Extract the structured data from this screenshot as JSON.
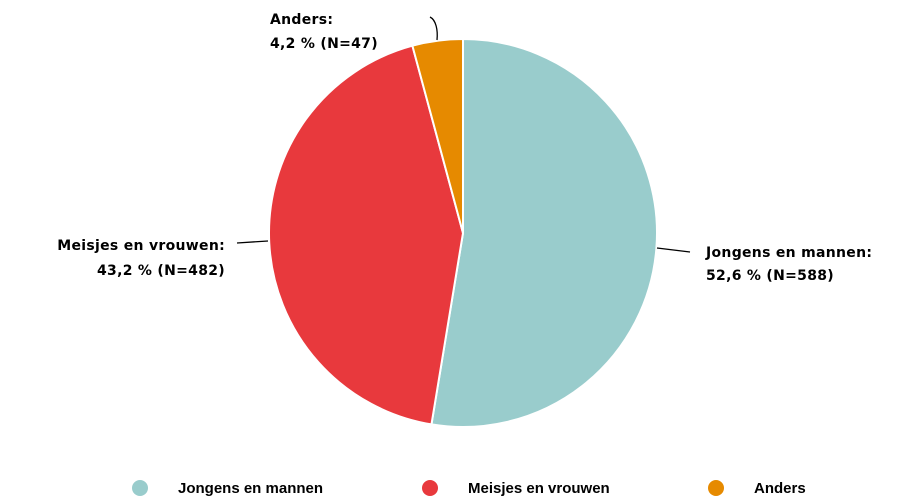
{
  "chart_data": {
    "type": "pie",
    "categories": [
      "Jongens en mannen",
      "Meisjes en vrouwen",
      "Anders"
    ],
    "values": [
      52.6,
      43.2,
      4.2
    ],
    "label_titles": [
      "Jongens en mannen:",
      "Meisjes en vrouwen:",
      "Anders:"
    ],
    "value_labels": [
      "52,6 % (N=588)",
      "43,2 % (N=482)",
      "4,2 % (N=47)"
    ],
    "colors": [
      "#99cccc",
      "#e8393d",
      "#e68a00"
    ],
    "legend": "bottom"
  }
}
